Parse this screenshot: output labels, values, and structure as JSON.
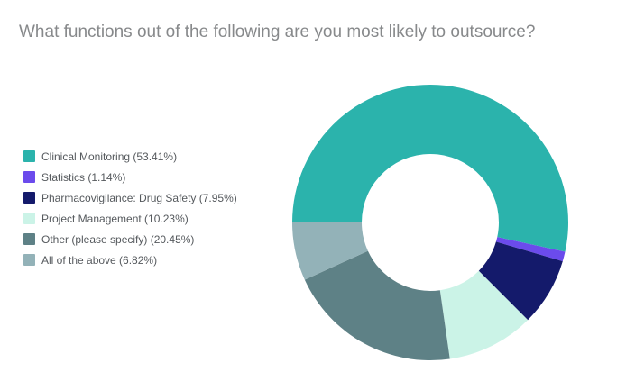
{
  "chart_data": {
    "type": "pie",
    "donut": true,
    "title": "What functions out of the following are you most likely to outsource?",
    "title_color": "#87898b",
    "legend_position": "left",
    "legend_text_color": "#55595d",
    "start_angle_deg_clockwise_from_top": 270,
    "inner_radius_ratio": 0.497,
    "series": [
      {
        "label": "Clinical Monitoring",
        "value": 53.41,
        "color": "#2bb3ac",
        "legend_text": "Clinical Monitoring (53.41%)"
      },
      {
        "label": "Statistics",
        "value": 1.14,
        "color": "#6b4bec",
        "legend_text": "Statistics (1.14%)"
      },
      {
        "label": "Pharmacovigilance: Drug Safety",
        "value": 7.95,
        "color": "#141a6b",
        "legend_text": "Pharmacovigilance: Drug Safety (7.95%)"
      },
      {
        "label": "Project Management",
        "value": 10.23,
        "color": "#cbf3e7",
        "legend_text": "Project Management (10.23%)"
      },
      {
        "label": "Other (please specify)",
        "value": 20.45,
        "color": "#5e8186",
        "legend_text": "Other (please specify) (20.45%)"
      },
      {
        "label": "All of the above",
        "value": 6.82,
        "color": "#93b2b8",
        "legend_text": "All of the above (6.82%)"
      }
    ]
  }
}
